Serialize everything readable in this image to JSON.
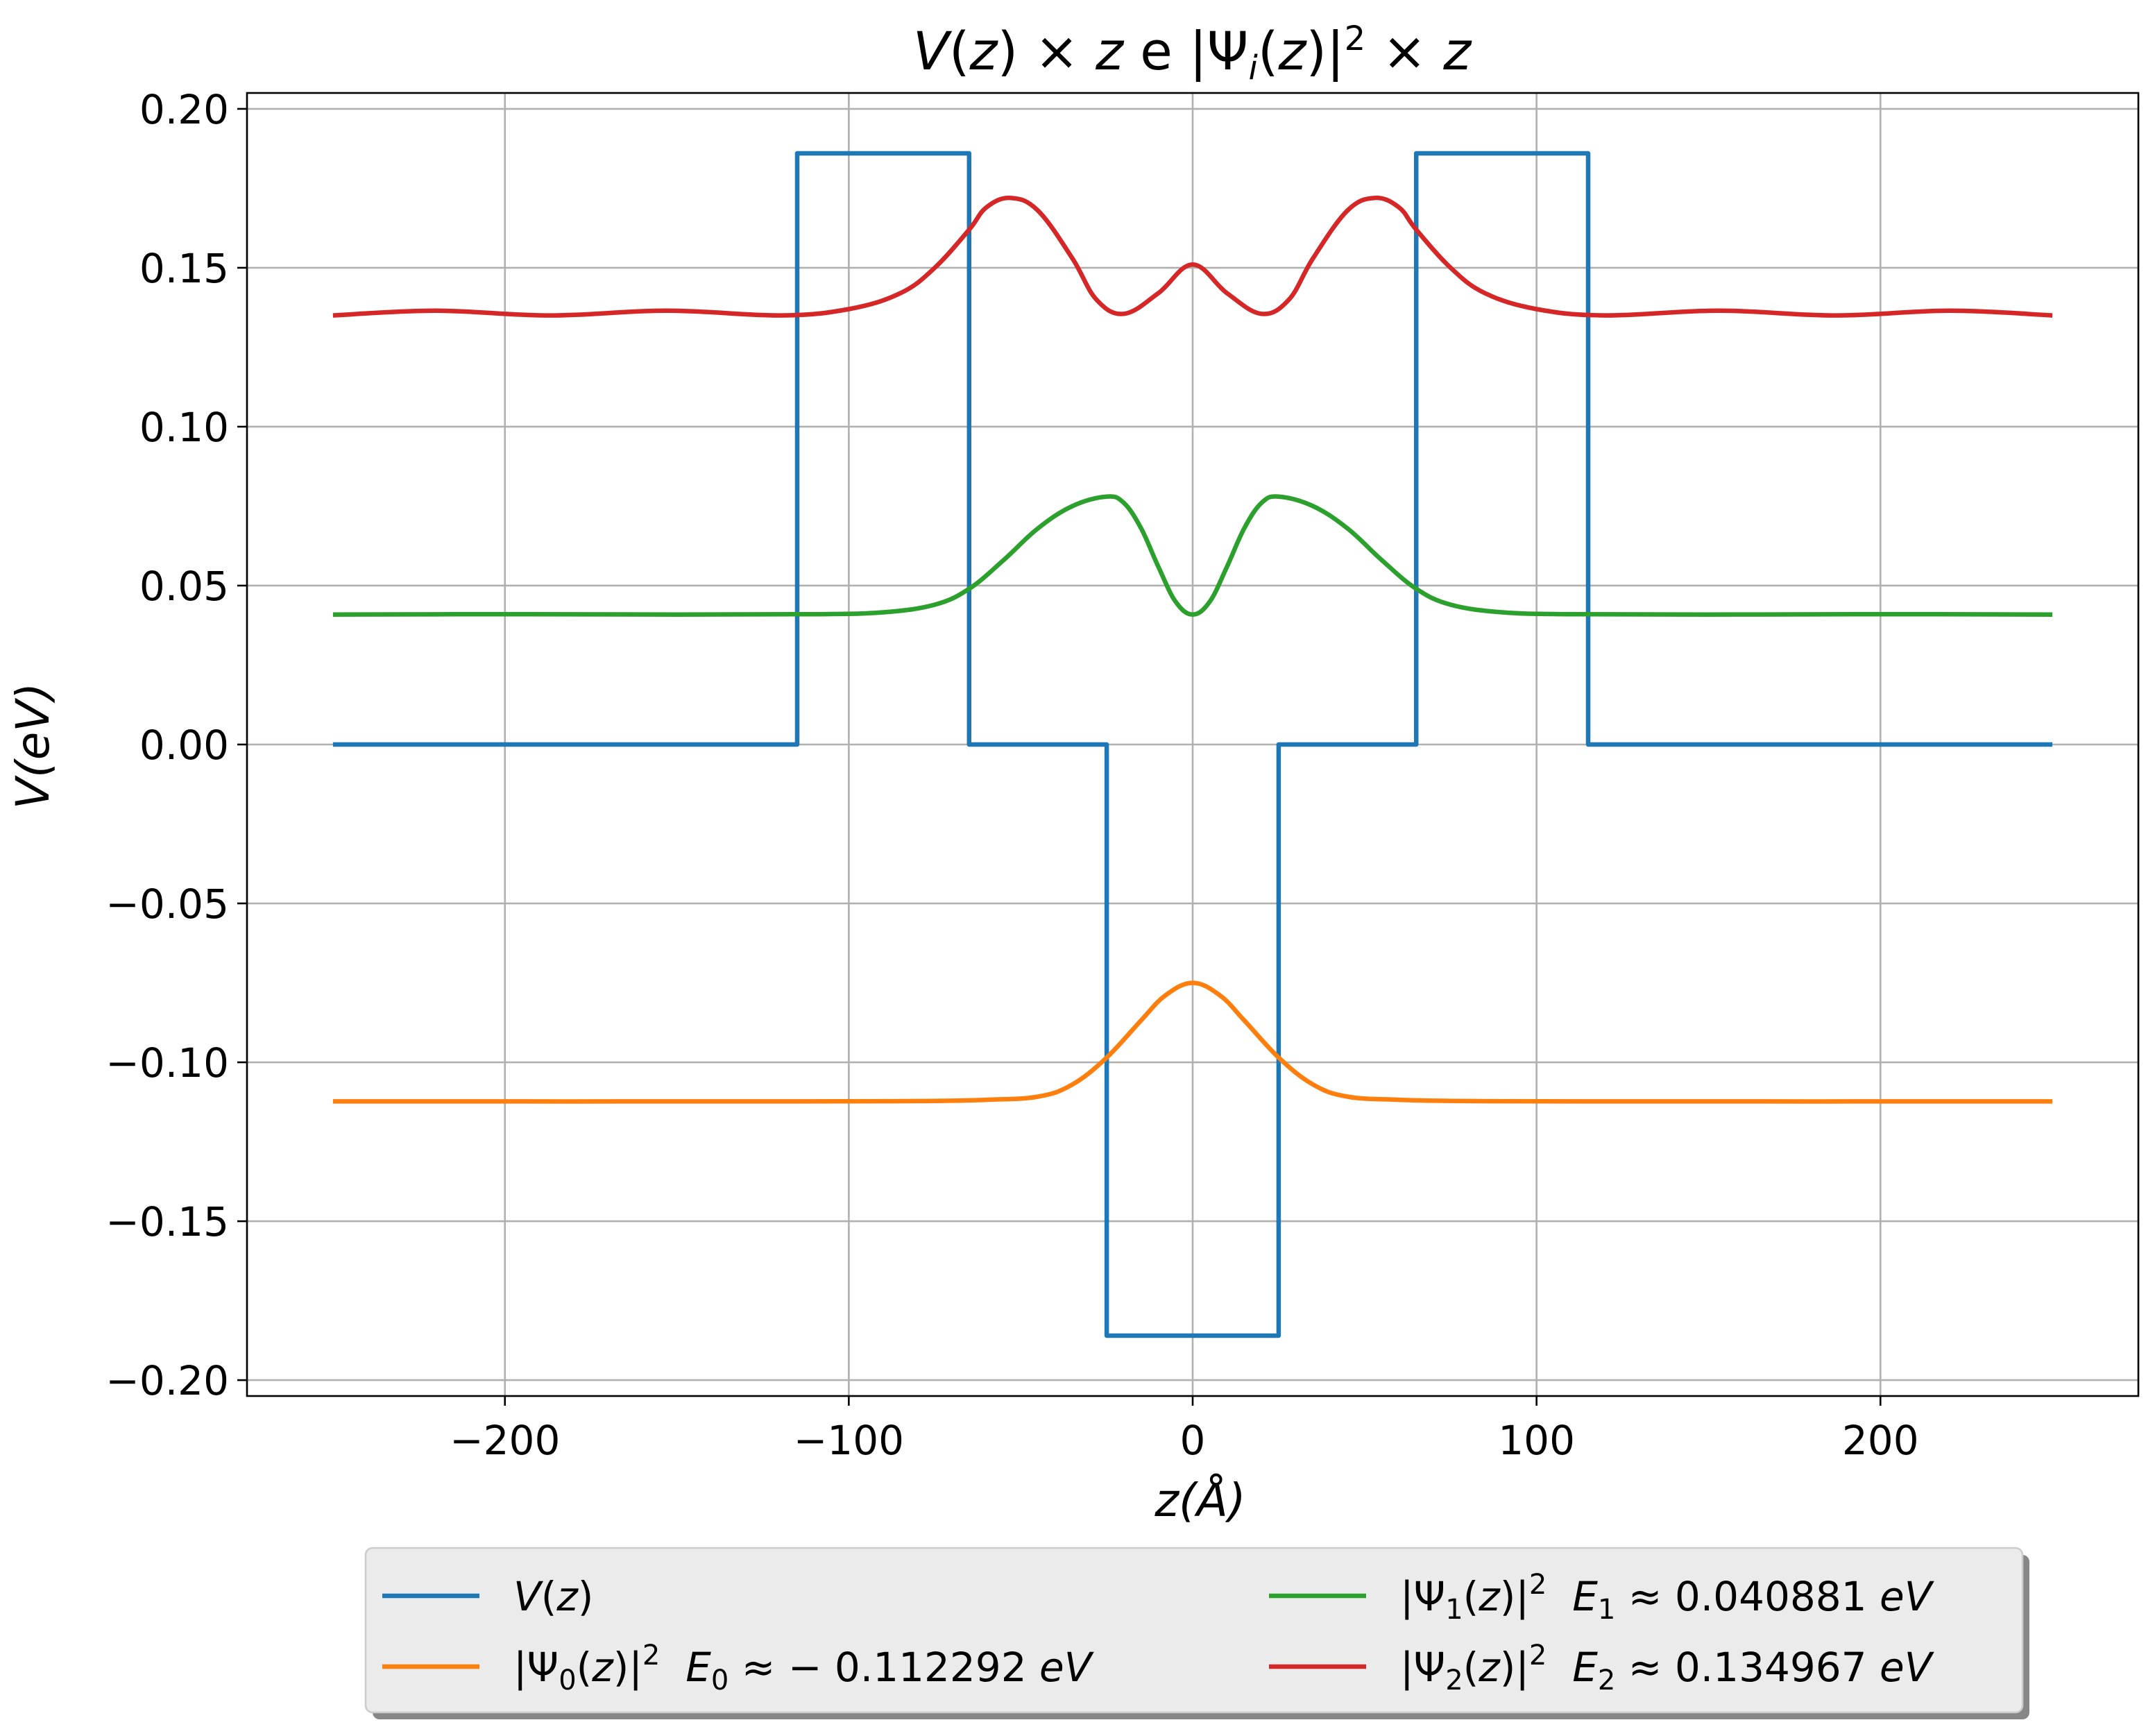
{
  "chart_data": {
    "type": "line",
    "title": "V(z) × z e |Ψ_i(z)|² × z",
    "xlabel": "z(Å)",
    "ylabel": "V(eV)",
    "xlim": [
      -275,
      275
    ],
    "ylim": [
      -0.205,
      0.205
    ],
    "xticks": [
      -200,
      -100,
      0,
      100,
      200
    ],
    "xtick_labels": [
      "−200",
      "−100",
      "0",
      "100",
      "200"
    ],
    "yticks": [
      0.2,
      0.15,
      0.1,
      0.05,
      0.0,
      -0.05,
      -0.1,
      -0.15,
      -0.2
    ],
    "ytick_labels": [
      "0.20",
      "0.15",
      "0.10",
      "0.05",
      "0.00",
      "−0.05",
      "−0.10",
      "−0.15",
      "−0.20"
    ],
    "grid": true,
    "legend_placement": "bottom-center, outside plot, 2 columns",
    "series": [
      {
        "name": "V(z)",
        "color": "#1f77b4",
        "x": [
          -250,
          -115,
          -115,
          -65,
          -65,
          -25,
          -25,
          25,
          25,
          65,
          65,
          115,
          115,
          250
        ],
        "y": [
          0,
          0,
          0.186,
          0.186,
          0,
          0,
          -0.186,
          -0.186,
          0,
          0,
          0.186,
          0.186,
          0,
          0
        ]
      },
      {
        "name": "|Ψ₀(z)|²  E₀ ≈ −0.112292 eV",
        "color": "#ff7f0e",
        "x": [
          -250,
          -120,
          -80,
          -60,
          -45,
          -35,
          -25,
          -15,
          -8,
          0,
          8,
          15,
          25,
          35,
          45,
          60,
          80,
          120,
          250
        ],
        "y": [
          -0.1123,
          -0.1123,
          -0.1122,
          -0.1118,
          -0.1108,
          -0.107,
          -0.0985,
          -0.0868,
          -0.079,
          -0.075,
          -0.079,
          -0.0868,
          -0.0985,
          -0.107,
          -0.1108,
          -0.1118,
          -0.1122,
          -0.1123,
          -0.1123
        ]
      },
      {
        "name": "|Ψ₁(z)|²  E₁ ≈ 0.040881 eV",
        "color": "#2ca02c",
        "x": [
          -250,
          -200,
          -150,
          -110,
          -90,
          -75,
          -65,
          -55,
          -45,
          -35,
          -25,
          -20,
          -15,
          -10,
          -5,
          0,
          5,
          10,
          15,
          20,
          25,
          35,
          45,
          55,
          65,
          75,
          90,
          110,
          150,
          200,
          250
        ],
        "y": [
          0.0409,
          0.041,
          0.0409,
          0.041,
          0.0416,
          0.044,
          0.049,
          0.058,
          0.068,
          0.075,
          0.078,
          0.076,
          0.068,
          0.056,
          0.045,
          0.0409,
          0.045,
          0.056,
          0.068,
          0.076,
          0.078,
          0.075,
          0.068,
          0.058,
          0.049,
          0.044,
          0.0416,
          0.041,
          0.0409,
          0.041,
          0.0409
        ]
      },
      {
        "name": "|Ψ₂(z)|²  E₂ ≈ 0.134967 eV",
        "color": "#d62728",
        "x": [
          -250,
          -220,
          -187,
          -153,
          -120,
          -100,
          -85,
          -75,
          -65,
          -60,
          -53,
          -45,
          -35,
          -28,
          -20,
          -10,
          0,
          10,
          20,
          28,
          35,
          45,
          53,
          60,
          65,
          75,
          85,
          100,
          120,
          153,
          187,
          220,
          250
        ],
        "y": [
          0.135,
          0.1365,
          0.135,
          0.1365,
          0.135,
          0.137,
          0.142,
          0.15,
          0.162,
          0.169,
          0.172,
          0.168,
          0.153,
          0.14,
          0.1355,
          0.142,
          0.151,
          0.142,
          0.1355,
          0.14,
          0.153,
          0.168,
          0.172,
          0.169,
          0.162,
          0.15,
          0.142,
          0.137,
          0.135,
          0.1365,
          0.135,
          0.1365,
          0.135
        ]
      }
    ]
  }
}
